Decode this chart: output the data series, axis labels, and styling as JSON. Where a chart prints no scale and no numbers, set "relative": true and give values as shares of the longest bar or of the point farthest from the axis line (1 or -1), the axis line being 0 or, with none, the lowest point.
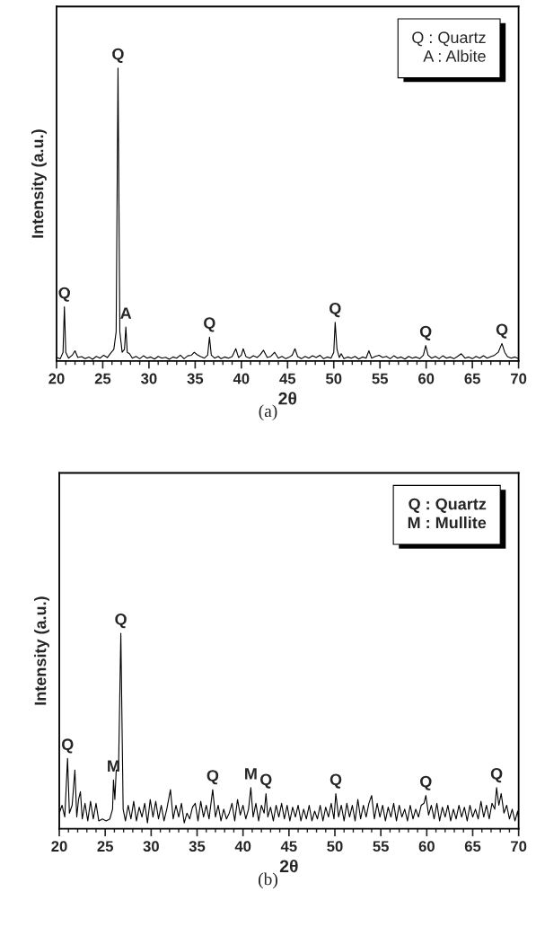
{
  "chart_data": [
    {
      "type": "line",
      "xlabel": "2θ",
      "ylabel": "Intensity (a.u.)",
      "relative": true,
      "xlim": [
        20,
        70
      ],
      "xticks": [
        20,
        25,
        30,
        35,
        40,
        45,
        50,
        55,
        60,
        65,
        70
      ],
      "tick_labels": "x",
      "grid": false,
      "legend": false,
      "series": [
        {
          "color": "#000000",
          "x": [
            20.0,
            20.4,
            20.7,
            20.85,
            21.0,
            21.3,
            21.7,
            22.0,
            22.3,
            22.7,
            23.1,
            23.5,
            23.9,
            24.3,
            24.7,
            25.1,
            25.5,
            25.8,
            26.2,
            26.45,
            26.65,
            26.85,
            27.1,
            27.35,
            27.5,
            27.65,
            27.9,
            28.2,
            28.6,
            29.0,
            29.4,
            29.8,
            30.2,
            30.6,
            31.0,
            31.4,
            31.8,
            32.2,
            32.6,
            33.0,
            33.4,
            33.8,
            34.2,
            34.6,
            34.9,
            35.2,
            35.6,
            36.0,
            36.35,
            36.55,
            36.75,
            37.1,
            37.5,
            37.8,
            38.2,
            38.6,
            39.0,
            39.4,
            39.7,
            40.0,
            40.2,
            40.5,
            40.9,
            41.3,
            41.7,
            42.0,
            42.4,
            42.8,
            43.2,
            43.6,
            44.0,
            44.4,
            44.8,
            45.2,
            45.5,
            45.8,
            46.1,
            46.5,
            46.9,
            47.3,
            47.7,
            48.1,
            48.5,
            48.9,
            49.3,
            49.7,
            50.0,
            50.15,
            50.35,
            50.6,
            50.8,
            51.1,
            51.5,
            51.9,
            52.3,
            52.7,
            53.1,
            53.5,
            53.8,
            54.1,
            54.5,
            54.9,
            55.3,
            55.7,
            56.1,
            56.5,
            56.9,
            57.3,
            57.7,
            58.1,
            58.5,
            58.9,
            59.3,
            59.7,
            59.95,
            60.2,
            60.6,
            61.0,
            61.4,
            61.8,
            62.2,
            62.6,
            63.0,
            63.4,
            63.8,
            64.2,
            64.6,
            65.0,
            65.4,
            65.8,
            66.2,
            66.6,
            67.0,
            67.4,
            67.8,
            68.2,
            68.5,
            68.8,
            69.2,
            69.6,
            70.0
          ],
          "values": [
            0.012,
            0.008,
            0.03,
            0.185,
            0.03,
            0.01,
            0.02,
            0.035,
            0.012,
            0.015,
            0.008,
            0.014,
            0.006,
            0.016,
            0.01,
            0.02,
            0.012,
            0.025,
            0.04,
            0.1,
            1.0,
            0.1,
            0.03,
            0.04,
            0.116,
            0.03,
            0.025,
            0.01,
            0.016,
            0.008,
            0.018,
            0.01,
            0.014,
            0.007,
            0.016,
            0.01,
            0.013,
            0.006,
            0.014,
            0.01,
            0.02,
            0.008,
            0.018,
            0.02,
            0.03,
            0.022,
            0.015,
            0.01,
            0.02,
            0.082,
            0.02,
            0.01,
            0.016,
            0.008,
            0.014,
            0.01,
            0.015,
            0.042,
            0.012,
            0.02,
            0.042,
            0.015,
            0.01,
            0.018,
            0.012,
            0.02,
            0.037,
            0.012,
            0.016,
            0.03,
            0.01,
            0.016,
            0.008,
            0.014,
            0.02,
            0.042,
            0.015,
            0.008,
            0.016,
            0.01,
            0.018,
            0.012,
            0.02,
            0.008,
            0.014,
            0.01,
            0.03,
            0.132,
            0.04,
            0.012,
            0.025,
            0.008,
            0.014,
            0.01,
            0.016,
            0.007,
            0.014,
            0.01,
            0.035,
            0.01,
            0.016,
            0.02,
            0.012,
            0.016,
            0.008,
            0.018,
            0.01,
            0.014,
            0.007,
            0.016,
            0.01,
            0.014,
            0.008,
            0.02,
            0.053,
            0.02,
            0.01,
            0.016,
            0.008,
            0.018,
            0.01,
            0.014,
            0.008,
            0.016,
            0.025,
            0.01,
            0.014,
            0.008,
            0.016,
            0.01,
            0.018,
            0.01,
            0.015,
            0.02,
            0.03,
            0.06,
            0.03,
            0.015,
            0.01,
            0.014,
            0.008
          ]
        }
      ],
      "annotations": [
        {
          "text": "Q",
          "x": 20.85,
          "y": 0.185
        },
        {
          "text": "Q",
          "x": 26.65,
          "y": 1.0
        },
        {
          "text": "A",
          "x": 27.5,
          "y": 0.116
        },
        {
          "text": "Q",
          "x": 36.55,
          "y": 0.082
        },
        {
          "text": "Q",
          "x": 50.15,
          "y": 0.132
        },
        {
          "text": "Q",
          "x": 59.95,
          "y": 0.053
        },
        {
          "text": "Q",
          "x": 68.2,
          "y": 0.06
        },
        "Q : Quartz",
        "A : Albite",
        "(a)"
      ]
    },
    {
      "type": "line",
      "xlabel": "2θ",
      "ylabel": "Intensity (a.u.)",
      "relative": true,
      "xlim": [
        20,
        70
      ],
      "xticks": [
        20,
        25,
        30,
        35,
        40,
        45,
        50,
        55,
        60,
        65,
        70
      ],
      "tick_labels": "x",
      "grid": false,
      "legend": false,
      "series": [
        {
          "color": "#000000",
          "x": [
            20.0,
            20.3,
            20.6,
            20.9,
            21.1,
            21.4,
            21.7,
            21.9,
            22.1,
            22.3,
            22.5,
            22.8,
            23.1,
            23.4,
            23.7,
            24.0,
            24.3,
            24.7,
            25.1,
            25.5,
            25.8,
            25.9,
            26.05,
            26.2,
            26.45,
            26.7,
            26.95,
            27.2,
            27.5,
            27.8,
            28.1,
            28.4,
            28.7,
            29.0,
            29.3,
            29.6,
            29.9,
            30.2,
            30.5,
            30.8,
            31.1,
            31.4,
            31.7,
            32.1,
            32.4,
            32.7,
            33.0,
            33.3,
            33.6,
            33.9,
            34.2,
            34.5,
            34.8,
            35.1,
            35.4,
            35.7,
            36.0,
            36.3,
            36.7,
            37.0,
            37.3,
            37.6,
            37.9,
            38.2,
            38.5,
            38.8,
            39.1,
            39.4,
            39.7,
            40.0,
            40.3,
            40.6,
            40.85,
            41.1,
            41.4,
            41.7,
            42.0,
            42.3,
            42.5,
            42.7,
            43.0,
            43.3,
            43.6,
            43.9,
            44.2,
            44.5,
            44.8,
            45.1,
            45.4,
            45.7,
            46.0,
            46.3,
            46.6,
            46.9,
            47.2,
            47.5,
            47.8,
            48.1,
            48.4,
            48.7,
            49.0,
            49.3,
            49.6,
            49.9,
            50.1,
            50.4,
            50.7,
            51.0,
            51.3,
            51.6,
            51.9,
            52.2,
            52.5,
            52.8,
            53.1,
            53.4,
            53.7,
            54.0,
            54.3,
            54.6,
            54.9,
            55.2,
            55.5,
            55.8,
            56.1,
            56.4,
            56.7,
            57.0,
            57.3,
            57.6,
            57.9,
            58.2,
            58.5,
            58.8,
            59.1,
            59.4,
            59.7,
            59.9,
            60.2,
            60.5,
            60.8,
            61.1,
            61.4,
            61.7,
            62.0,
            62.3,
            62.6,
            62.9,
            63.2,
            63.5,
            63.8,
            64.1,
            64.4,
            64.7,
            65.0,
            65.3,
            65.6,
            65.9,
            66.2,
            66.5,
            66.8,
            67.1,
            67.4,
            67.6,
            67.85,
            68.1,
            68.4,
            68.7,
            69.0,
            69.3,
            69.6,
            69.9,
            70.0
          ],
          "values": [
            0.08,
            0.12,
            0.06,
            0.36,
            0.08,
            0.12,
            0.3,
            0.06,
            0.15,
            0.19,
            0.05,
            0.13,
            0.04,
            0.14,
            0.05,
            0.13,
            0.04,
            0.05,
            0.04,
            0.05,
            0.1,
            0.25,
            0.15,
            0.3,
            0.3,
            1.0,
            0.1,
            0.04,
            0.12,
            0.05,
            0.14,
            0.04,
            0.11,
            0.06,
            0.13,
            0.03,
            0.15,
            0.06,
            0.14,
            0.05,
            0.12,
            0.04,
            0.1,
            0.2,
            0.05,
            0.12,
            0.06,
            0.13,
            0.03,
            0.08,
            0.05,
            0.11,
            0.13,
            0.04,
            0.14,
            0.06,
            0.12,
            0.05,
            0.2,
            0.06,
            0.12,
            0.04,
            0.1,
            0.05,
            0.08,
            0.13,
            0.04,
            0.15,
            0.07,
            0.12,
            0.05,
            0.1,
            0.21,
            0.06,
            0.13,
            0.04,
            0.12,
            0.08,
            0.18,
            0.06,
            0.11,
            0.04,
            0.12,
            0.06,
            0.13,
            0.05,
            0.12,
            0.04,
            0.11,
            0.06,
            0.12,
            0.04,
            0.1,
            0.05,
            0.12,
            0.04,
            0.09,
            0.05,
            0.12,
            0.04,
            0.11,
            0.06,
            0.13,
            0.05,
            0.18,
            0.06,
            0.12,
            0.04,
            0.13,
            0.06,
            0.12,
            0.04,
            0.15,
            0.05,
            0.12,
            0.06,
            0.13,
            0.17,
            0.05,
            0.13,
            0.06,
            0.12,
            0.04,
            0.11,
            0.06,
            0.13,
            0.04,
            0.12,
            0.06,
            0.1,
            0.04,
            0.12,
            0.05,
            0.1,
            0.06,
            0.12,
            0.13,
            0.17,
            0.07,
            0.12,
            0.05,
            0.13,
            0.04,
            0.11,
            0.06,
            0.12,
            0.04,
            0.1,
            0.05,
            0.12,
            0.06,
            0.11,
            0.04,
            0.12,
            0.06,
            0.1,
            0.05,
            0.14,
            0.06,
            0.12,
            0.05,
            0.13,
            0.1,
            0.21,
            0.12,
            0.18,
            0.08,
            0.12,
            0.05,
            0.1,
            0.04,
            0.09,
            0.05
          ]
        }
      ],
      "annotations": [
        {
          "text": "Q",
          "x": 20.9,
          "y": 0.36
        },
        {
          "text": "M",
          "x": 25.9,
          "y": 0.25
        },
        {
          "text": "Q",
          "x": 26.7,
          "y": 1.0
        },
        {
          "text": "Q",
          "x": 36.7,
          "y": 0.2
        },
        {
          "text": "M",
          "x": 40.85,
          "y": 0.21
        },
        {
          "text": "Q",
          "x": 42.5,
          "y": 0.18
        },
        {
          "text": "Q",
          "x": 50.1,
          "y": 0.18
        },
        {
          "text": "Q",
          "x": 59.9,
          "y": 0.17
        },
        {
          "text": "Q",
          "x": 67.6,
          "y": 0.21
        },
        "Q : Quartz",
        "M : Mullite",
        "(b)"
      ]
    }
  ]
}
